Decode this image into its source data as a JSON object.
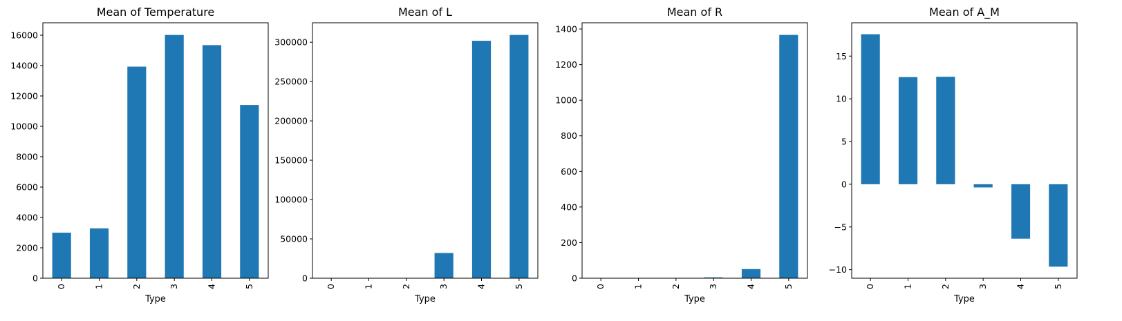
{
  "figure": {
    "bar_color": "#1f77b4",
    "axis_color": "#000000",
    "background": "#ffffff"
  },
  "chart_data": [
    {
      "type": "bar",
      "title": "Mean of Temperature",
      "xlabel": "Type",
      "ylabel": "",
      "categories": [
        "0",
        "1",
        "2",
        "3",
        "4",
        "5"
      ],
      "values": [
        2997,
        3283,
        13931,
        16018,
        15347,
        11405
      ],
      "ylim": [
        0,
        16819
      ],
      "yticks": [
        0,
        2000,
        4000,
        6000,
        8000,
        10000,
        12000,
        14000,
        16000
      ],
      "ytick_labels": [
        "0",
        "2000",
        "4000",
        "6000",
        "8000",
        "10000",
        "12000",
        "14000",
        "16000"
      ],
      "grid": false,
      "legend": "none"
    },
    {
      "type": "bar",
      "title": "Mean of L",
      "xlabel": "Type",
      "ylabel": "",
      "categories": [
        "0",
        "1",
        "2",
        "3",
        "4",
        "5"
      ],
      "values": [
        0.0007,
        0.0055,
        0.0024,
        32067,
        301816,
        309246
      ],
      "ylim": [
        0,
        324708
      ],
      "yticks": [
        0,
        50000,
        100000,
        150000,
        200000,
        250000,
        300000
      ],
      "ytick_labels": [
        "0",
        "50000",
        "100000",
        "150000",
        "200000",
        "250000",
        "300000"
      ],
      "grid": false,
      "legend": "none"
    },
    {
      "type": "bar",
      "title": "Mean of R",
      "xlabel": "Type",
      "ylabel": "",
      "categories": [
        "0",
        "1",
        "2",
        "3",
        "4",
        "5"
      ],
      "values": [
        0.11,
        0.35,
        0.01,
        4.43,
        51.15,
        1366.9
      ],
      "ylim": [
        0,
        1435
      ],
      "yticks": [
        0,
        200,
        400,
        600,
        800,
        1000,
        1200,
        1400
      ],
      "ytick_labels": [
        "0",
        "200",
        "400",
        "600",
        "800",
        "1000",
        "1200",
        "1400"
      ],
      "grid": false,
      "legend": "none"
    },
    {
      "type": "bar",
      "title": "Mean of A_M",
      "xlabel": "Type",
      "ylabel": "",
      "categories": [
        "0",
        "1",
        "2",
        "3",
        "4",
        "5"
      ],
      "values": [
        17.56,
        12.54,
        12.58,
        -0.37,
        -6.37,
        -9.65
      ],
      "ylim": [
        -11.0,
        18.9
      ],
      "yticks": [
        -10,
        -5,
        0,
        5,
        10,
        15
      ],
      "ytick_labels": [
        "−10",
        "−5",
        "0",
        "5",
        "10",
        "15"
      ],
      "grid": false,
      "legend": "none"
    }
  ]
}
